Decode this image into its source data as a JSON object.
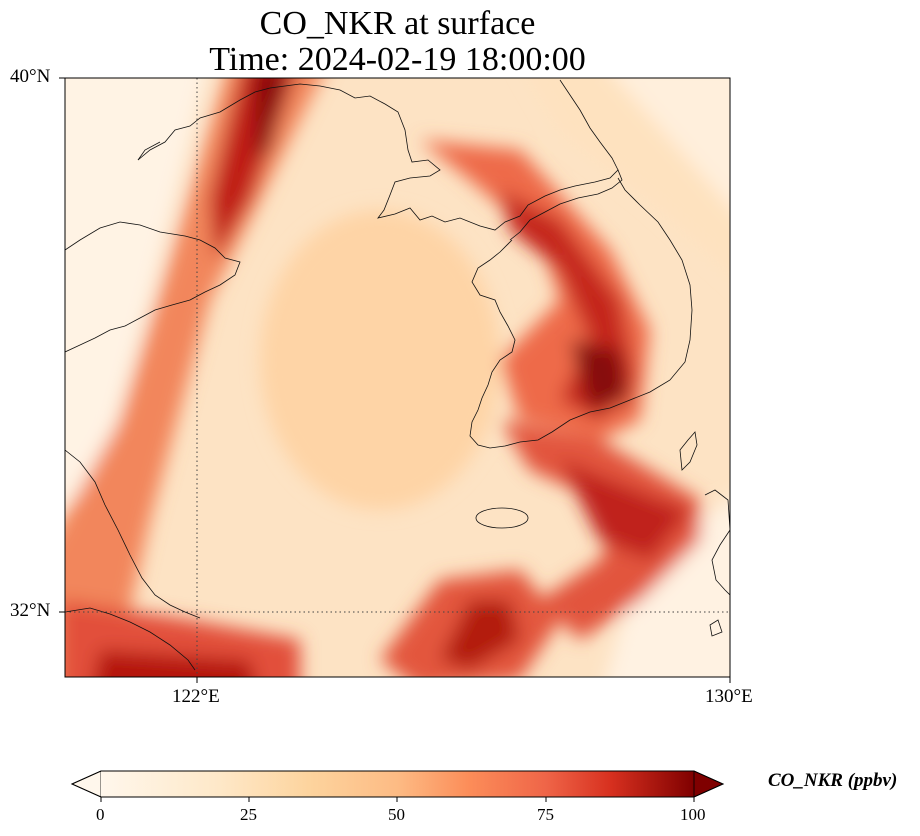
{
  "title_line1": "CO_NKR at surface",
  "title_line2": "Time: 2024-02-19 18:00:00",
  "lat_labels": [
    "40°N",
    "32°N"
  ],
  "lon_labels": [
    "122°E",
    "130°E"
  ],
  "colorbar": {
    "label": "CO_NKR (ppbv)",
    "ticks": [
      "0",
      "25",
      "50",
      "75",
      "100"
    ],
    "range": [
      0,
      100
    ],
    "colormap": "OrRd",
    "extend": "both"
  },
  "colors": {
    "low": "#fff7ec",
    "mid_low": "#fdd49e",
    "mid": "#fc8d59",
    "high": "#d7301f",
    "max": "#7f0000"
  },
  "map": {
    "extent_lon": [
      120,
      130
    ],
    "extent_lat": [
      31,
      40
    ],
    "gridlines": {
      "lon": [
        122,
        130
      ],
      "lat": [
        32,
        40
      ],
      "style": "dotted"
    }
  }
}
